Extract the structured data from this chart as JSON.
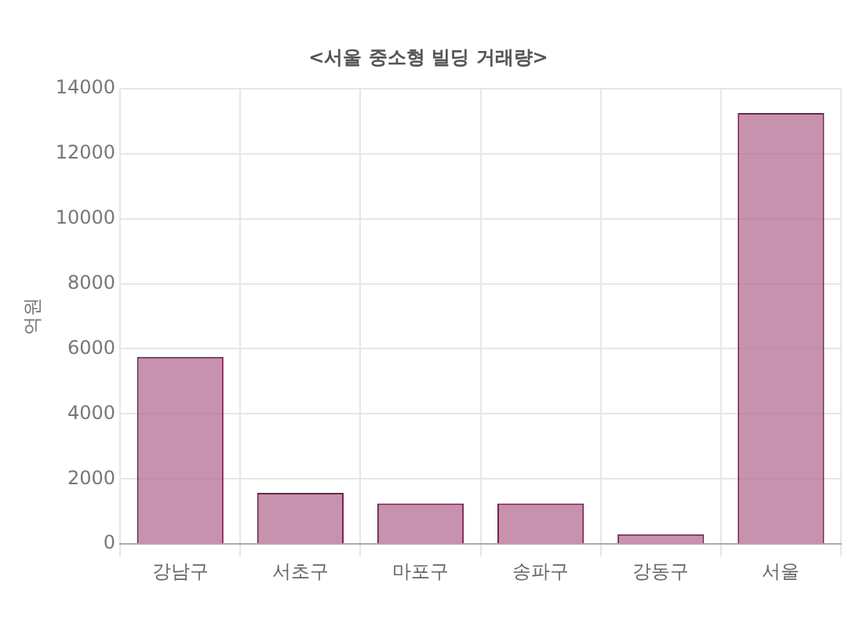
{
  "chart_data": {
    "type": "bar",
    "title": "<서울 중소형 빌딩 거래량>",
    "ylabel": "억원",
    "categories": [
      "강남구",
      "서초구",
      "마포구",
      "송파구",
      "강동구",
      "서울"
    ],
    "series": [
      {
        "color": "#b46e94",
        "values": [
          5750,
          1570,
          1250,
          1250,
          300,
          13250
        ]
      }
    ],
    "ylim": [
      0,
      14000
    ],
    "yticks": [
      0,
      2000,
      4000,
      6000,
      8000,
      10000,
      12000,
      14000
    ],
    "grid": true,
    "legend": false
  }
}
